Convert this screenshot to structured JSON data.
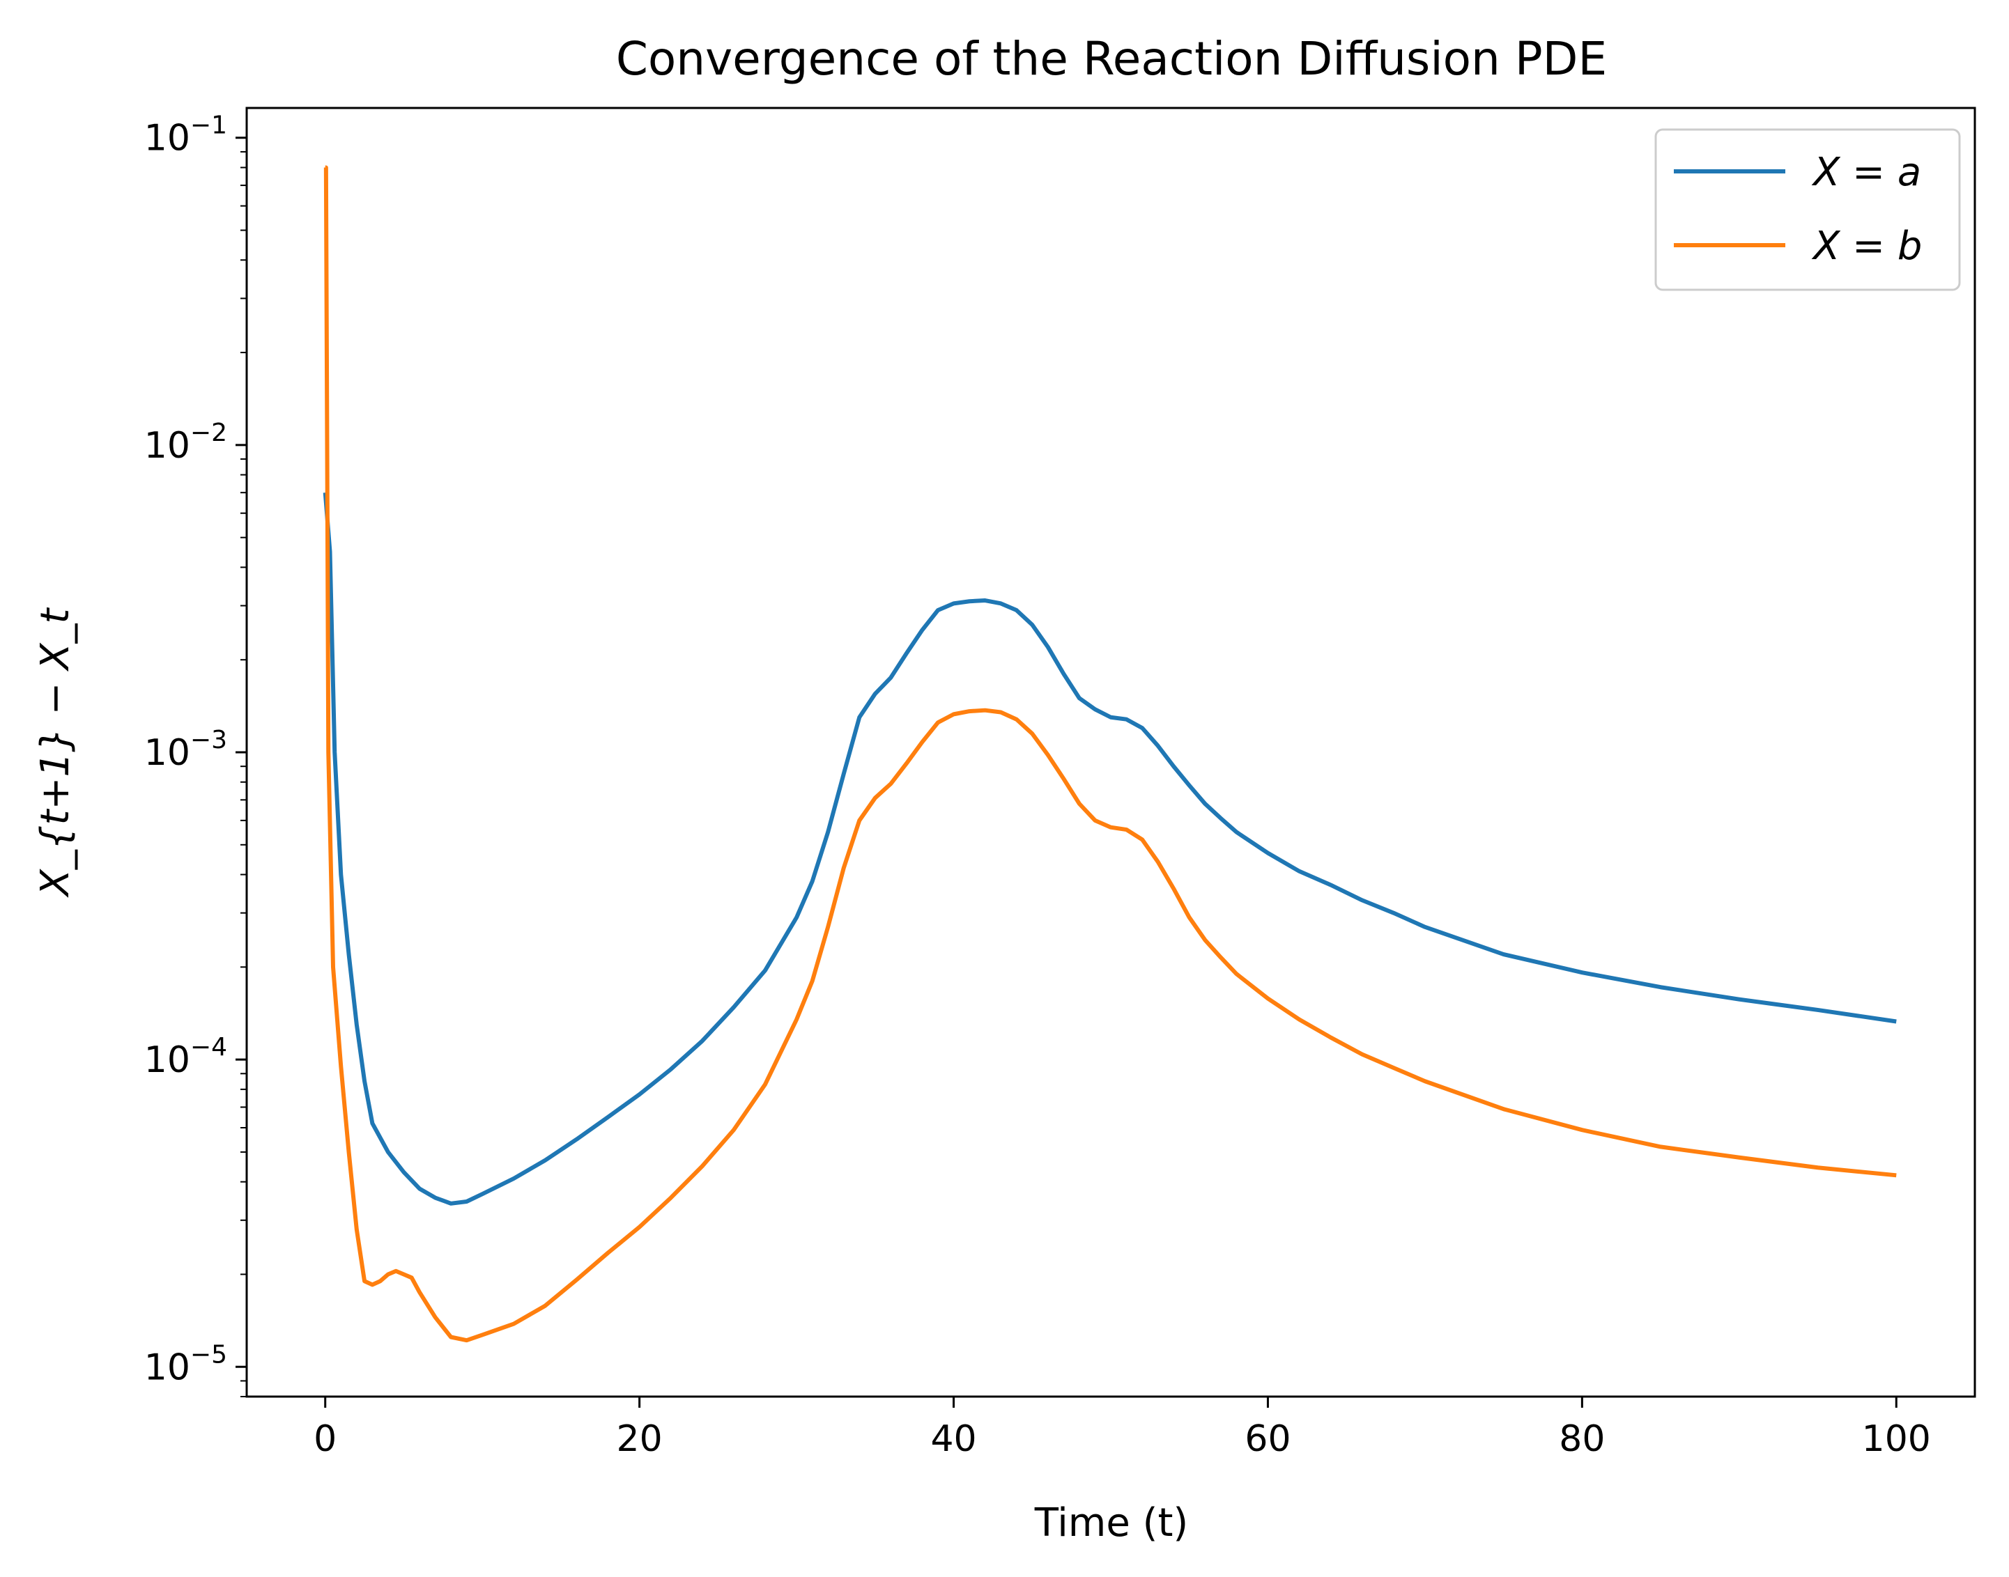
{
  "chart_data": {
    "type": "line",
    "title": "Convergence of the Reaction Diffusion PDE",
    "xlabel": "Time (t)",
    "ylabel": "X_{t+1} − X_t",
    "xlim": [
      -5,
      105
    ],
    "ylim": [
      8e-06,
      0.125
    ],
    "yscale": "log",
    "grid": false,
    "legend_position": "top-right",
    "x_ticks": [
      0,
      20,
      40,
      60,
      80,
      100
    ],
    "x_tick_labels": [
      "0",
      "20",
      "40",
      "60",
      "80",
      "100"
    ],
    "y_ticks": [
      {
        "value": 0.1,
        "base": "10",
        "exp": "−1"
      },
      {
        "value": 0.01,
        "base": "10",
        "exp": "−2"
      },
      {
        "value": 0.001,
        "base": "10",
        "exp": "−3"
      },
      {
        "value": 0.0001,
        "base": "10",
        "exp": "−4"
      },
      {
        "value": 1e-05,
        "base": "10",
        "exp": "−5"
      }
    ],
    "series": [
      {
        "name": "X = a",
        "color": "#1f77b4",
        "x": [
          0,
          0.3,
          0.6,
          1,
          1.5,
          2,
          2.5,
          3,
          4,
          5,
          6,
          7,
          8,
          9,
          10,
          12,
          14,
          16,
          18,
          20,
          22,
          24,
          26,
          28,
          30,
          31,
          32,
          33,
          34,
          35,
          36,
          37,
          38,
          39,
          40,
          41,
          42,
          43,
          44,
          45,
          46,
          47,
          48,
          49,
          50,
          51,
          52,
          53,
          54,
          55,
          56,
          57,
          58,
          60,
          62,
          64,
          66,
          68,
          70,
          75,
          80,
          85,
          90,
          95,
          100
        ],
        "y": [
          0.007,
          0.0045,
          0.001,
          0.0004,
          0.00022,
          0.00013,
          8.5e-05,
          6.2e-05,
          5e-05,
          4.3e-05,
          3.8e-05,
          3.55e-05,
          3.4e-05,
          3.45e-05,
          3.65e-05,
          4.1e-05,
          4.7e-05,
          5.5e-05,
          6.5e-05,
          7.7e-05,
          9.3e-05,
          0.000115,
          0.000148,
          0.000195,
          0.00029,
          0.00038,
          0.00055,
          0.00085,
          0.0013,
          0.00155,
          0.00175,
          0.0021,
          0.0025,
          0.0029,
          0.00305,
          0.0031,
          0.00312,
          0.00305,
          0.0029,
          0.0026,
          0.0022,
          0.0018,
          0.0015,
          0.00138,
          0.0013,
          0.00128,
          0.0012,
          0.00105,
          0.0009,
          0.00078,
          0.00068,
          0.00061,
          0.00055,
          0.00047,
          0.00041,
          0.00037,
          0.00033,
          0.0003,
          0.00027,
          0.00022,
          0.000192,
          0.000172,
          0.000157,
          0.000145,
          0.000133
        ]
      },
      {
        "name": "X = b",
        "color": "#ff7f0e",
        "x": [
          0,
          0.05,
          0.2,
          0.5,
          1,
          1.5,
          2,
          2.5,
          3,
          3.5,
          4,
          4.5,
          5,
          5.5,
          6,
          7,
          8,
          9,
          10,
          12,
          14,
          16,
          18,
          20,
          22,
          24,
          26,
          28,
          30,
          31,
          32,
          33,
          34,
          35,
          36,
          37,
          38,
          39,
          40,
          41,
          42,
          43,
          44,
          45,
          46,
          47,
          48,
          49,
          50,
          51,
          52,
          53,
          54,
          55,
          56,
          57,
          58,
          60,
          62,
          64,
          66,
          68,
          70,
          75,
          80,
          85,
          90,
          95,
          100
        ],
        "y": [
          0.08,
          0.08,
          0.001,
          0.0002,
          9.5e-05,
          5e-05,
          2.8e-05,
          1.9e-05,
          1.85e-05,
          1.9e-05,
          2e-05,
          2.05e-05,
          2e-05,
          1.95e-05,
          1.75e-05,
          1.45e-05,
          1.25e-05,
          1.22e-05,
          1.27e-05,
          1.38e-05,
          1.58e-05,
          1.92e-05,
          2.35e-05,
          2.85e-05,
          3.55e-05,
          4.5e-05,
          5.9e-05,
          8.3e-05,
          0.000135,
          0.00018,
          0.00027,
          0.00042,
          0.0006,
          0.00071,
          0.00079,
          0.00092,
          0.00108,
          0.00125,
          0.00133,
          0.00136,
          0.00137,
          0.00135,
          0.00128,
          0.00115,
          0.00098,
          0.00082,
          0.00068,
          0.0006,
          0.00057,
          0.00056,
          0.00052,
          0.00044,
          0.00036,
          0.00029,
          0.000245,
          0.000215,
          0.00019,
          0.000158,
          0.000135,
          0.000118,
          0.000104,
          9.4e-05,
          8.5e-05,
          6.9e-05,
          5.9e-05,
          5.2e-05,
          4.8e-05,
          4.45e-05,
          4.2e-05
        ]
      }
    ]
  }
}
